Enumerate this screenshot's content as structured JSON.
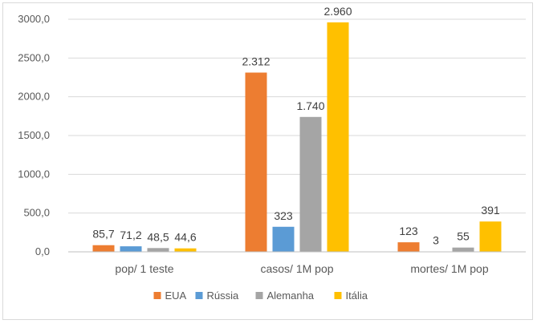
{
  "chart_data": {
    "type": "bar",
    "categories": [
      "pop/ 1 teste",
      "casos/ 1M pop",
      "mortes/ 1M pop"
    ],
    "series": [
      {
        "name": "EUA",
        "color": "#ED7D31",
        "values": [
          85.7,
          2312,
          123
        ],
        "labels": [
          "85,7",
          "2.312",
          "123"
        ]
      },
      {
        "name": "Rússia",
        "color": "#5B9BD5",
        "values": [
          71.2,
          323,
          3
        ],
        "labels": [
          "71,2",
          "323",
          "3"
        ]
      },
      {
        "name": "Alemanha",
        "color": "#A5A5A5",
        "values": [
          48.5,
          1740,
          55
        ],
        "labels": [
          "48,5",
          "1.740",
          "55"
        ]
      },
      {
        "name": "Itália",
        "color": "#FFC000",
        "values": [
          44.6,
          2960,
          391
        ],
        "labels": [
          "44,6",
          "2.960",
          "391"
        ]
      }
    ],
    "y_ticks": [
      0,
      500,
      1000,
      1500,
      2000,
      2500,
      3000
    ],
    "y_tick_labels": [
      "0,0",
      "500,0",
      "1000,0",
      "1500,0",
      "2000,0",
      "2500,0",
      "3000,0"
    ],
    "ylim": [
      0,
      3000
    ],
    "grid": true,
    "legend_position": "bottom"
  }
}
